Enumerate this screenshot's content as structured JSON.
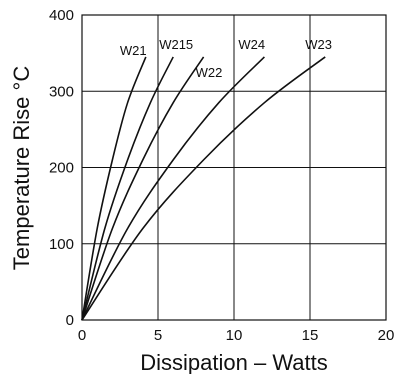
{
  "chart_data": {
    "type": "line",
    "xlabel": "Dissipation – Watts",
    "ylabel": "Temperature Rise °C",
    "xlim": [
      0,
      20
    ],
    "ylim": [
      0,
      400
    ],
    "x_ticks": [
      "0",
      "5",
      "10",
      "15",
      "20"
    ],
    "y_ticks": [
      "0",
      "100",
      "200",
      "300",
      "400"
    ],
    "grid": true,
    "series": [
      {
        "name": "W21",
        "x": [
          0,
          1,
          2,
          3,
          4.2
        ],
        "y": [
          0,
          120,
          210,
          285,
          345
        ]
      },
      {
        "name": "W215",
        "x": [
          0,
          1.5,
          3,
          4.5,
          6
        ],
        "y": [
          0,
          120,
          210,
          285,
          345
        ]
      },
      {
        "name": "W22",
        "x": [
          0,
          2,
          4,
          6,
          8
        ],
        "y": [
          0,
          120,
          210,
          285,
          345
        ]
      },
      {
        "name": "W24",
        "x": [
          0,
          3,
          6,
          9,
          12
        ],
        "y": [
          0,
          120,
          210,
          285,
          345
        ]
      },
      {
        "name": "W23",
        "x": [
          0,
          4,
          8,
          12,
          16
        ],
        "y": [
          0,
          120,
          210,
          285,
          345
        ]
      }
    ]
  }
}
